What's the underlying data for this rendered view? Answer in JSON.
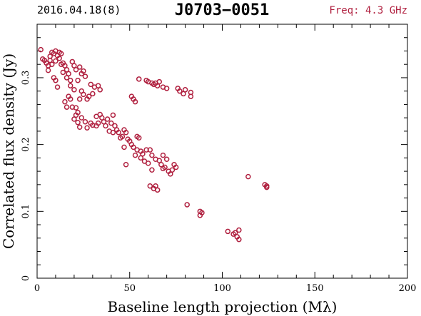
{
  "header": {
    "date": "2016.04.18(8)",
    "source": "J0703−0051",
    "freq": "Freq: 4.3 GHz",
    "freq_color": "#b0203f"
  },
  "chart_data": {
    "type": "scatter",
    "title": "J0703−0051",
    "xlabel": "Baseline length projection (Mλ)",
    "ylabel": "Correlated flux density (Jy)",
    "xlim": [
      0,
      200
    ],
    "ylim": [
      0,
      0.38
    ],
    "xticks": [
      0,
      50,
      100,
      150,
      200
    ],
    "yticks": [
      0,
      0.1,
      0.2,
      0.3
    ],
    "xtick_labels": [
      "0",
      "50",
      "100",
      "150",
      "200"
    ],
    "ytick_labels": [
      "0",
      "0.1",
      "0.2",
      "0.3"
    ],
    "marker_color": "#b0203f",
    "series": [
      {
        "points": [
          [
            2,
            0.342
          ],
          [
            3,
            0.328
          ],
          [
            4,
            0.326
          ],
          [
            5,
            0.322
          ],
          [
            6,
            0.318
          ],
          [
            6,
            0.311
          ],
          [
            7,
            0.332
          ],
          [
            7,
            0.326
          ],
          [
            8,
            0.338
          ],
          [
            8,
            0.32
          ],
          [
            9,
            0.336
          ],
          [
            9,
            0.3
          ],
          [
            10,
            0.34
          ],
          [
            10,
            0.325
          ],
          [
            10,
            0.296
          ],
          [
            11,
            0.333
          ],
          [
            11,
            0.286
          ],
          [
            12,
            0.338
          ],
          [
            12,
            0.329
          ],
          [
            13,
            0.32
          ],
          [
            13,
            0.336
          ],
          [
            14,
            0.322
          ],
          [
            14,
            0.308
          ],
          [
            15,
            0.318
          ],
          [
            15,
            0.264
          ],
          [
            16,
            0.312
          ],
          [
            16,
            0.3
          ],
          [
            16,
            0.256
          ],
          [
            17,
            0.306
          ],
          [
            17,
            0.272
          ],
          [
            18,
            0.296
          ],
          [
            18,
            0.288
          ],
          [
            18,
            0.268
          ],
          [
            19,
            0.324
          ],
          [
            19,
            0.256
          ],
          [
            20,
            0.318
          ],
          [
            20,
            0.282
          ],
          [
            20,
            0.238
          ],
          [
            21,
            0.312
          ],
          [
            21,
            0.255
          ],
          [
            21,
            0.244
          ],
          [
            22,
            0.296
          ],
          [
            22,
            0.248
          ],
          [
            22,
            0.233
          ],
          [
            23,
            0.316
          ],
          [
            23,
            0.268
          ],
          [
            23,
            0.226
          ],
          [
            24,
            0.306
          ],
          [
            24,
            0.28
          ],
          [
            24,
            0.24
          ],
          [
            25,
            0.31
          ],
          [
            25,
            0.275
          ],
          [
            26,
            0.302
          ],
          [
            26,
            0.234
          ],
          [
            27,
            0.268
          ],
          [
            27,
            0.225
          ],
          [
            28,
            0.272
          ],
          [
            29,
            0.29
          ],
          [
            29,
            0.232
          ],
          [
            30,
            0.276
          ],
          [
            30,
            0.229
          ],
          [
            31,
            0.286
          ],
          [
            32,
            0.242
          ],
          [
            32,
            0.228
          ],
          [
            33,
            0.288
          ],
          [
            33,
            0.232
          ],
          [
            34,
            0.282
          ],
          [
            34,
            0.245
          ],
          [
            35,
            0.24
          ],
          [
            36,
            0.234
          ],
          [
            37,
            0.228
          ],
          [
            38,
            0.238
          ],
          [
            39,
            0.22
          ],
          [
            40,
            0.232
          ],
          [
            41,
            0.244
          ],
          [
            41,
            0.218
          ],
          [
            42,
            0.228
          ],
          [
            43,
            0.222
          ],
          [
            44,
            0.218
          ],
          [
            45,
            0.21
          ],
          [
            46,
            0.212
          ],
          [
            47,
            0.222
          ],
          [
            47,
            0.196
          ],
          [
            48,
            0.218
          ],
          [
            48,
            0.17
          ],
          [
            49,
            0.208
          ],
          [
            50,
            0.205
          ],
          [
            51,
            0.2
          ],
          [
            51,
            0.272
          ],
          [
            52,
            0.268
          ],
          [
            52,
            0.196
          ],
          [
            53,
            0.264
          ],
          [
            53,
            0.184
          ],
          [
            54,
            0.212
          ],
          [
            54,
            0.192
          ],
          [
            55,
            0.298
          ],
          [
            55,
            0.21
          ],
          [
            56,
            0.19
          ],
          [
            56,
            0.18
          ],
          [
            57,
            0.186
          ],
          [
            58,
            0.175
          ],
          [
            59,
            0.296
          ],
          [
            59,
            0.192
          ],
          [
            60,
            0.294
          ],
          [
            60,
            0.172
          ],
          [
            61,
            0.192
          ],
          [
            61,
            0.138
          ],
          [
            62,
            0.292
          ],
          [
            62,
            0.184
          ],
          [
            62,
            0.162
          ],
          [
            63,
            0.29
          ],
          [
            63,
            0.134
          ],
          [
            64,
            0.292
          ],
          [
            64,
            0.178
          ],
          [
            64,
            0.138
          ],
          [
            65,
            0.288
          ],
          [
            65,
            0.132
          ],
          [
            66,
            0.294
          ],
          [
            66,
            0.176
          ],
          [
            67,
            0.17
          ],
          [
            68,
            0.286
          ],
          [
            68,
            0.184
          ],
          [
            68,
            0.164
          ],
          [
            69,
            0.166
          ],
          [
            70,
            0.284
          ],
          [
            70,
            0.178
          ],
          [
            71,
            0.16
          ],
          [
            72,
            0.156
          ],
          [
            73,
            0.162
          ],
          [
            74,
            0.17
          ],
          [
            75,
            0.166
          ],
          [
            76,
            0.284
          ],
          [
            77,
            0.28
          ],
          [
            79,
            0.276
          ],
          [
            80,
            0.282
          ],
          [
            81,
            0.11
          ],
          [
            83,
            0.278
          ],
          [
            83,
            0.272
          ],
          [
            88,
            0.1
          ],
          [
            88,
            0.094
          ],
          [
            89,
            0.098
          ],
          [
            103,
            0.07
          ],
          [
            106,
            0.066
          ],
          [
            107,
            0.068
          ],
          [
            108,
            0.062
          ],
          [
            109,
            0.072
          ],
          [
            109,
            0.058
          ],
          [
            114,
            0.152
          ],
          [
            123,
            0.14
          ],
          [
            124,
            0.136
          ],
          [
            124,
            0.138
          ]
        ]
      }
    ]
  }
}
